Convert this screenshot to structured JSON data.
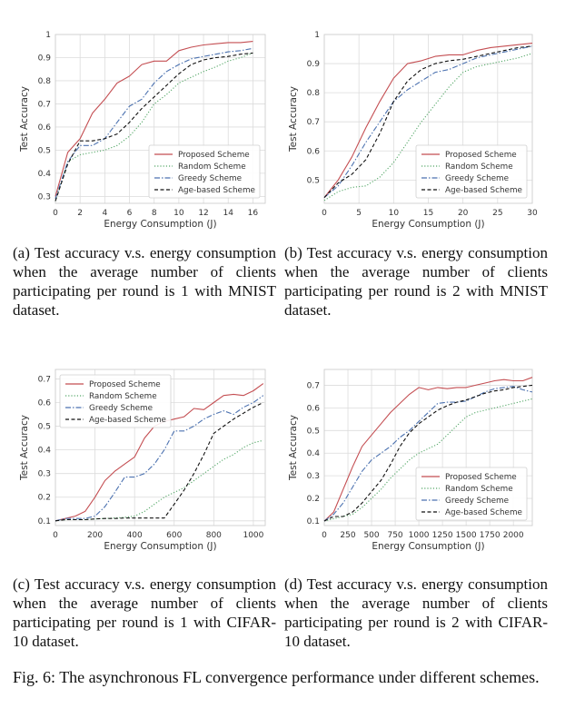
{
  "chart_data": [
    {
      "type": "line",
      "xlabel": "Energy Consumption (J)",
      "ylabel": "Test Accuracy",
      "xlim": [
        0,
        17
      ],
      "ylim": [
        0.27,
        1.0
      ],
      "xticks": [
        0,
        2,
        4,
        6,
        8,
        10,
        12,
        14,
        16
      ],
      "yticks": [
        0.3,
        0.4,
        0.5,
        0.6,
        0.7,
        0.8,
        0.9,
        1.0
      ],
      "legend_position": "bottom-right",
      "series": [
        {
          "name": "Proposed Scheme",
          "color": "#c44e52",
          "dash": "solid",
          "x": [
            0,
            1,
            2,
            3,
            4,
            5,
            6,
            7,
            8,
            9,
            10,
            11,
            12,
            13,
            14,
            15,
            16
          ],
          "y": [
            0.3,
            0.49,
            0.55,
            0.66,
            0.72,
            0.79,
            0.82,
            0.87,
            0.885,
            0.885,
            0.93,
            0.945,
            0.955,
            0.96,
            0.965,
            0.965,
            0.97
          ]
        },
        {
          "name": "Random Scheme",
          "color": "#55a868",
          "dash": "dotted",
          "x": [
            0,
            1,
            2,
            3,
            4,
            5,
            6,
            7,
            8,
            9,
            10,
            11,
            12,
            13,
            14,
            15,
            16
          ],
          "y": [
            0.28,
            0.45,
            0.48,
            0.49,
            0.5,
            0.52,
            0.56,
            0.62,
            0.7,
            0.74,
            0.79,
            0.815,
            0.84,
            0.86,
            0.885,
            0.9,
            0.92
          ]
        },
        {
          "name": "Greedy Scheme",
          "color": "#4c72b0",
          "dash": "dashdot",
          "x": [
            0,
            1,
            2,
            3,
            4,
            5,
            6,
            7,
            8,
            9,
            10,
            11,
            12,
            13,
            14,
            15,
            16
          ],
          "y": [
            0.29,
            0.45,
            0.52,
            0.52,
            0.55,
            0.62,
            0.69,
            0.72,
            0.79,
            0.84,
            0.87,
            0.895,
            0.905,
            0.915,
            0.925,
            0.93,
            0.94
          ]
        },
        {
          "name": "Age-based Scheme",
          "color": "#111111",
          "dash": "dashed",
          "x": [
            0,
            1,
            2,
            3,
            4,
            5,
            6,
            7,
            8,
            9,
            10,
            11,
            12,
            13,
            14,
            15,
            16
          ],
          "y": [
            0.28,
            0.44,
            0.54,
            0.54,
            0.55,
            0.57,
            0.62,
            0.68,
            0.73,
            0.78,
            0.83,
            0.87,
            0.89,
            0.9,
            0.905,
            0.915,
            0.92
          ]
        }
      ]
    },
    {
      "type": "line",
      "xlabel": "Energy Consumption (J)",
      "ylabel": "Test Accuracy",
      "xlim": [
        0,
        30
      ],
      "ylim": [
        0.42,
        1.0
      ],
      "xticks": [
        0,
        5,
        10,
        15,
        20,
        25,
        30
      ],
      "yticks": [
        0.5,
        0.6,
        0.7,
        0.8,
        0.9,
        1.0
      ],
      "legend_position": "bottom-right",
      "series": [
        {
          "name": "Proposed Scheme",
          "color": "#c44e52",
          "dash": "solid",
          "x": [
            0,
            2,
            4,
            6,
            8,
            10,
            12,
            14,
            16,
            18,
            20,
            22,
            24,
            26,
            28,
            30
          ],
          "y": [
            0.44,
            0.5,
            0.58,
            0.68,
            0.77,
            0.85,
            0.9,
            0.91,
            0.925,
            0.93,
            0.93,
            0.945,
            0.955,
            0.96,
            0.965,
            0.97
          ]
        },
        {
          "name": "Random Scheme",
          "color": "#55a868",
          "dash": "dotted",
          "x": [
            0,
            2,
            4,
            6,
            8,
            10,
            12,
            14,
            16,
            18,
            20,
            22,
            24,
            26,
            28,
            30
          ],
          "y": [
            0.43,
            0.46,
            0.475,
            0.48,
            0.51,
            0.56,
            0.63,
            0.7,
            0.76,
            0.82,
            0.87,
            0.89,
            0.9,
            0.91,
            0.92,
            0.935
          ]
        },
        {
          "name": "Greedy Scheme",
          "color": "#4c72b0",
          "dash": "dashdot",
          "x": [
            0,
            2,
            4,
            6,
            8,
            10,
            12,
            14,
            16,
            18,
            20,
            22,
            24,
            26,
            28,
            30
          ],
          "y": [
            0.44,
            0.48,
            0.55,
            0.63,
            0.7,
            0.77,
            0.81,
            0.84,
            0.87,
            0.88,
            0.9,
            0.92,
            0.93,
            0.94,
            0.95,
            0.96
          ]
        },
        {
          "name": "Age-based Scheme",
          "color": "#111111",
          "dash": "dashed",
          "x": [
            0,
            2,
            4,
            6,
            8,
            10,
            12,
            14,
            16,
            18,
            20,
            22,
            24,
            26,
            28,
            30
          ],
          "y": [
            0.44,
            0.49,
            0.52,
            0.57,
            0.66,
            0.77,
            0.84,
            0.88,
            0.9,
            0.91,
            0.915,
            0.925,
            0.935,
            0.945,
            0.955,
            0.96
          ]
        }
      ]
    },
    {
      "type": "line",
      "xlabel": "Energy Consumption (J)",
      "ylabel": "Test Accuracy",
      "xlim": [
        0,
        1060
      ],
      "ylim": [
        0.08,
        0.74
      ],
      "xticks": [
        0,
        200,
        400,
        600,
        800,
        1000
      ],
      "yticks": [
        0.1,
        0.2,
        0.3,
        0.4,
        0.5,
        0.6,
        0.7
      ],
      "legend_position": "top-left",
      "series": [
        {
          "name": "Proposed Scheme",
          "color": "#c44e52",
          "dash": "solid",
          "x": [
            0,
            50,
            100,
            150,
            200,
            250,
            300,
            350,
            400,
            450,
            500,
            550,
            600,
            650,
            700,
            750,
            800,
            850,
            900,
            950,
            1000,
            1050
          ],
          "y": [
            0.1,
            0.11,
            0.12,
            0.14,
            0.2,
            0.27,
            0.31,
            0.34,
            0.37,
            0.45,
            0.5,
            0.52,
            0.53,
            0.54,
            0.575,
            0.57,
            0.6,
            0.63,
            0.635,
            0.63,
            0.65,
            0.68
          ]
        },
        {
          "name": "Random Scheme",
          "color": "#55a868",
          "dash": "dotted",
          "x": [
            0,
            50,
            100,
            150,
            200,
            250,
            300,
            350,
            400,
            450,
            500,
            550,
            600,
            650,
            700,
            750,
            800,
            850,
            900,
            950,
            1000,
            1050
          ],
          "y": [
            0.1,
            0.105,
            0.105,
            0.105,
            0.108,
            0.11,
            0.112,
            0.115,
            0.12,
            0.14,
            0.17,
            0.2,
            0.22,
            0.24,
            0.27,
            0.3,
            0.33,
            0.36,
            0.38,
            0.41,
            0.43,
            0.44
          ]
        },
        {
          "name": "Greedy Scheme",
          "color": "#4c72b0",
          "dash": "dashdot",
          "x": [
            0,
            50,
            100,
            150,
            200,
            250,
            300,
            350,
            400,
            450,
            500,
            550,
            600,
            650,
            700,
            750,
            800,
            850,
            900,
            950,
            1000,
            1050
          ],
          "y": [
            0.1,
            0.11,
            0.11,
            0.11,
            0.12,
            0.16,
            0.22,
            0.285,
            0.285,
            0.3,
            0.34,
            0.4,
            0.48,
            0.48,
            0.5,
            0.53,
            0.55,
            0.565,
            0.55,
            0.58,
            0.6,
            0.63
          ]
        },
        {
          "name": "Age-based Scheme",
          "color": "#111111",
          "dash": "dashed",
          "x": [
            0,
            50,
            100,
            150,
            200,
            250,
            300,
            350,
            400,
            450,
            500,
            550,
            600,
            650,
            700,
            750,
            800,
            850,
            900,
            950,
            1000,
            1050
          ],
          "y": [
            0.1,
            0.105,
            0.105,
            0.105,
            0.108,
            0.11,
            0.11,
            0.112,
            0.112,
            0.112,
            0.112,
            0.112,
            0.17,
            0.23,
            0.3,
            0.38,
            0.47,
            0.5,
            0.53,
            0.555,
            0.58,
            0.6
          ]
        }
      ]
    },
    {
      "type": "line",
      "xlabel": "Energy Consumption (J)",
      "ylabel": "Test Accuracy",
      "xlim": [
        0,
        2200
      ],
      "ylim": [
        0.08,
        0.77
      ],
      "xticks": [
        0,
        250,
        500,
        750,
        1000,
        1250,
        1500,
        1750,
        2000
      ],
      "yticks": [
        0.1,
        0.2,
        0.3,
        0.4,
        0.5,
        0.6,
        0.7
      ],
      "legend_position": "bottom-right",
      "series": [
        {
          "name": "Proposed Scheme",
          "color": "#c44e52",
          "dash": "solid",
          "x": [
            0,
            100,
            200,
            300,
            400,
            500,
            600,
            700,
            800,
            900,
            1000,
            1100,
            1200,
            1300,
            1400,
            1500,
            1600,
            1700,
            1800,
            1900,
            2000,
            2100,
            2200
          ],
          "y": [
            0.1,
            0.14,
            0.24,
            0.34,
            0.43,
            0.48,
            0.53,
            0.58,
            0.62,
            0.66,
            0.69,
            0.68,
            0.69,
            0.685,
            0.69,
            0.69,
            0.7,
            0.71,
            0.72,
            0.725,
            0.72,
            0.72,
            0.735
          ]
        },
        {
          "name": "Random Scheme",
          "color": "#55a868",
          "dash": "dotted",
          "x": [
            0,
            100,
            200,
            300,
            400,
            500,
            600,
            700,
            800,
            900,
            1000,
            1100,
            1200,
            1300,
            1400,
            1500,
            1600,
            1700,
            1800,
            1900,
            2000,
            2100,
            2200
          ],
          "y": [
            0.1,
            0.11,
            0.12,
            0.13,
            0.16,
            0.2,
            0.24,
            0.29,
            0.33,
            0.37,
            0.4,
            0.42,
            0.44,
            0.48,
            0.52,
            0.56,
            0.58,
            0.59,
            0.6,
            0.61,
            0.62,
            0.63,
            0.64
          ]
        },
        {
          "name": "Greedy Scheme",
          "color": "#4c72b0",
          "dash": "dashdot",
          "x": [
            0,
            100,
            200,
            300,
            400,
            500,
            600,
            700,
            800,
            900,
            1000,
            1100,
            1200,
            1300,
            1400,
            1500,
            1600,
            1700,
            1800,
            1900,
            2000,
            2100,
            2200
          ],
          "y": [
            0.1,
            0.13,
            0.18,
            0.25,
            0.32,
            0.37,
            0.4,
            0.43,
            0.47,
            0.5,
            0.54,
            0.58,
            0.62,
            0.625,
            0.625,
            0.63,
            0.65,
            0.67,
            0.685,
            0.69,
            0.695,
            0.68,
            0.67
          ]
        },
        {
          "name": "Age-based Scheme",
          "color": "#111111",
          "dash": "dashed",
          "x": [
            0,
            100,
            200,
            300,
            400,
            500,
            600,
            700,
            800,
            900,
            1000,
            1100,
            1200,
            1300,
            1400,
            1500,
            1600,
            1700,
            1800,
            1900,
            2000,
            2100,
            2200
          ],
          "y": [
            0.1,
            0.12,
            0.12,
            0.14,
            0.18,
            0.23,
            0.28,
            0.35,
            0.43,
            0.49,
            0.53,
            0.56,
            0.59,
            0.61,
            0.625,
            0.635,
            0.65,
            0.665,
            0.675,
            0.68,
            0.69,
            0.695,
            0.7
          ]
        }
      ]
    }
  ],
  "captions": {
    "a": "(a) Test accuracy v.s. energy consumption when the average number of clients participating per round is 1 with MNIST dataset.",
    "b": "(b) Test accuracy v.s. energy consumption when the average number of clients participating per round is 2 with MNIST dataset.",
    "c": "(c) Test accuracy v.s. energy consumption when the average number of clients participating per round is 1 with CIFAR-10 dataset.",
    "d": "(d) Test accuracy v.s. energy consumption when the average number of clients participating per round is 2 with CIFAR-10 dataset."
  },
  "figure_caption": "Fig. 6: The asynchronous FL convergence performance under different schemes."
}
